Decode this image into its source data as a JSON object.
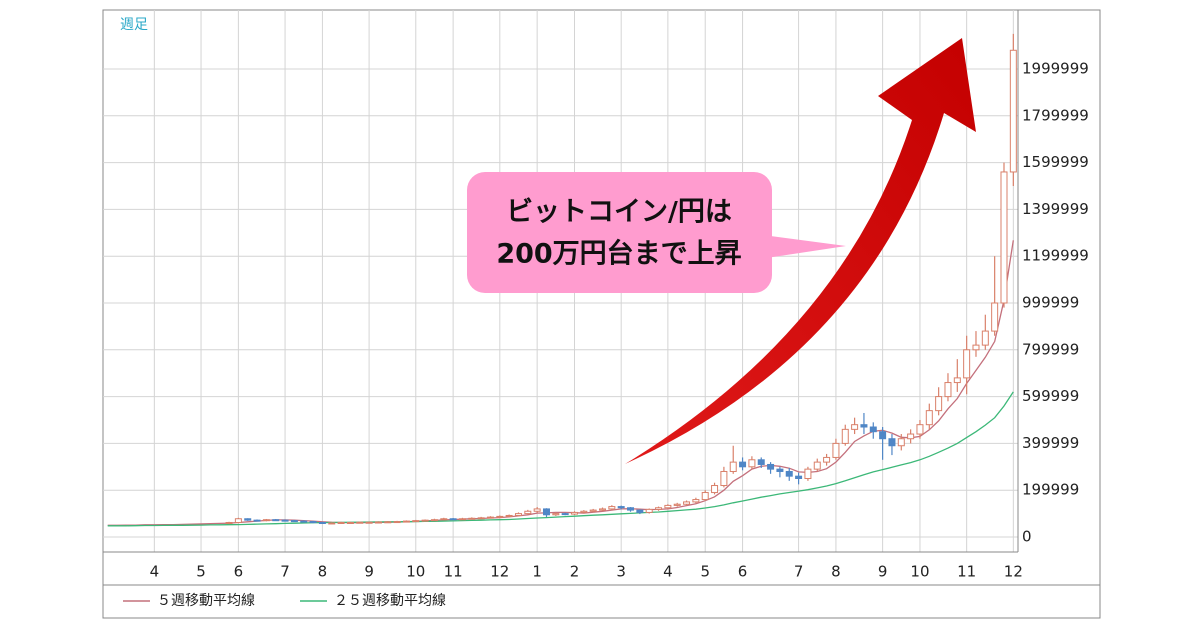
{
  "chart_data": {
    "type": "candlestick",
    "label": "週足",
    "annotation": [
      "ビットコイン/円は",
      "200万円台まで上昇"
    ],
    "categories": [
      null,
      null,
      null,
      null,
      null,
      "4",
      null,
      null,
      null,
      null,
      "5",
      null,
      null,
      null,
      "6",
      null,
      null,
      null,
      null,
      "7",
      null,
      null,
      null,
      "8",
      null,
      null,
      null,
      null,
      "9",
      null,
      null,
      null,
      null,
      "10",
      null,
      null,
      null,
      "11",
      null,
      null,
      null,
      null,
      "12",
      null,
      null,
      null,
      "1",
      null,
      null,
      null,
      "2",
      null,
      null,
      null,
      null,
      "3",
      null,
      null,
      null,
      null,
      "4",
      null,
      null,
      null,
      "5",
      null,
      null,
      null,
      "6",
      null,
      null,
      null,
      null,
      null,
      "7",
      null,
      null,
      null,
      "8",
      null,
      null,
      null,
      null,
      "9",
      null,
      null,
      null,
      "10",
      null,
      null,
      null,
      null,
      "11",
      null,
      null,
      null,
      null,
      "12"
    ],
    "open": [
      null,
      null,
      null,
      null,
      null,
      null,
      null,
      null,
      null,
      null,
      null,
      null,
      null,
      58000,
      62000,
      78000,
      72000,
      70000,
      74000,
      72000,
      70000,
      68000,
      66000,
      62000,
      60000,
      60000,
      62000,
      62000,
      63000,
      63000,
      64000,
      65000,
      66000,
      68000,
      70000,
      72000,
      74000,
      78000,
      76000,
      78000,
      80000,
      82000,
      85000,
      88000,
      92000,
      100000,
      110000,
      120000,
      95000,
      100000,
      98000,
      105000,
      110000,
      115000,
      120000,
      130000,
      125000,
      115000,
      105000,
      118000,
      125000,
      135000,
      140000,
      150000,
      160000,
      190000,
      220000,
      280000,
      320000,
      300000,
      330000,
      310000,
      290000,
      280000,
      260000,
      250000,
      290000,
      320000,
      340000,
      400000,
      460000,
      480000,
      470000,
      450000,
      420000,
      390000,
      420000,
      440000,
      480000,
      540000,
      600000,
      660000,
      680000,
      800000,
      820000,
      880000,
      1000000,
      1560000
    ],
    "high": [
      null,
      null,
      null,
      null,
      null,
      null,
      null,
      null,
      null,
      null,
      null,
      null,
      null,
      65000,
      82000,
      80000,
      75000,
      77000,
      77000,
      75000,
      73000,
      71000,
      69000,
      65000,
      63000,
      65000,
      65000,
      66000,
      66000,
      67000,
      68000,
      69000,
      71000,
      73000,
      75000,
      78000,
      82000,
      81000,
      82000,
      84000,
      86000,
      89000,
      92000,
      96000,
      105000,
      116000,
      128000,
      123000,
      105000,
      104000,
      110000,
      115000,
      120000,
      126000,
      136000,
      134000,
      128000,
      118000,
      122000,
      130000,
      140000,
      146000,
      156000,
      168000,
      200000,
      232000,
      300000,
      390000,
      340000,
      345000,
      340000,
      320000,
      300000,
      295000,
      275000,
      300000,
      335000,
      355000,
      420000,
      480000,
      510000,
      530000,
      490000,
      470000,
      440000,
      440000,
      460000,
      500000,
      570000,
      640000,
      700000,
      760000,
      860000,
      880000,
      950000,
      1200000,
      1600000,
      2150000
    ],
    "low": [
      null,
      null,
      null,
      null,
      null,
      null,
      null,
      null,
      null,
      null,
      null,
      null,
      null,
      55000,
      59000,
      69000,
      67000,
      67000,
      69000,
      67000,
      65000,
      63000,
      59000,
      57000,
      57000,
      58000,
      59000,
      60000,
      60000,
      60000,
      61000,
      62000,
      63000,
      65000,
      67000,
      69000,
      71000,
      73000,
      73000,
      75000,
      77000,
      79000,
      81000,
      84000,
      88000,
      95000,
      104000,
      85000,
      90000,
      93000,
      94000,
      100000,
      105000,
      110000,
      114000,
      118000,
      108000,
      98000,
      100000,
      112000,
      120000,
      130000,
      134000,
      144000,
      155000,
      182000,
      212000,
      270000,
      285000,
      290000,
      295000,
      270000,
      255000,
      240000,
      225000,
      240000,
      280000,
      305000,
      330000,
      390000,
      440000,
      440000,
      420000,
      330000,
      350000,
      370000,
      400000,
      420000,
      460000,
      520000,
      580000,
      620000,
      610000,
      770000,
      800000,
      860000,
      980000,
      1500000
    ],
    "close": [
      null,
      null,
      null,
      null,
      null,
      null,
      null,
      null,
      null,
      null,
      null,
      null,
      null,
      62000,
      78000,
      72000,
      70000,
      74000,
      72000,
      70000,
      68000,
      66000,
      62000,
      60000,
      60000,
      62000,
      62000,
      63000,
      63000,
      64000,
      65000,
      66000,
      68000,
      70000,
      72000,
      74000,
      78000,
      76000,
      78000,
      80000,
      82000,
      85000,
      88000,
      92000,
      100000,
      110000,
      120000,
      95000,
      100000,
      98000,
      105000,
      110000,
      115000,
      120000,
      130000,
      125000,
      115000,
      105000,
      118000,
      125000,
      135000,
      140000,
      150000,
      160000,
      190000,
      220000,
      280000,
      320000,
      300000,
      330000,
      310000,
      290000,
      280000,
      260000,
      250000,
      290000,
      320000,
      340000,
      400000,
      460000,
      480000,
      470000,
      450000,
      420000,
      390000,
      420000,
      440000,
      480000,
      540000,
      600000,
      660000,
      680000,
      800000,
      820000,
      880000,
      1000000,
      1560000,
      2080000
    ],
    "up_color": "#d9806a",
    "down_color": "#4f86c6",
    "series": [
      {
        "name": "５週移動平均線",
        "color": "#c4707c",
        "values": [
          50000,
          50000,
          51000,
          51000,
          52000,
          52000,
          53000,
          53000,
          54000,
          55000,
          56000,
          57000,
          58000,
          59000,
          62000,
          65000,
          68000,
          71000,
          73000,
          73000,
          72000,
          70000,
          68000,
          65000,
          63000,
          62000,
          61000,
          61000,
          62000,
          63000,
          63000,
          64000,
          65000,
          67000,
          69000,
          71000,
          73000,
          75000,
          76000,
          78000,
          79000,
          81000,
          83000,
          86000,
          90000,
          95000,
          102000,
          103000,
          105000,
          105000,
          104000,
          102000,
          106000,
          110000,
          115000,
          120000,
          121000,
          119000,
          117000,
          118000,
          120000,
          126000,
          134000,
          142000,
          155000,
          172000,
          200000,
          238000,
          262000,
          290000,
          302000,
          306000,
          302000,
          294000,
          278000,
          276000,
          280000,
          292000,
          320000,
          362000,
          408000,
          432000,
          452000,
          456000,
          444000,
          426000,
          424000,
          430000,
          458000,
          496000,
          548000,
          592000,
          656000,
          712000,
          768000,
          836000,
          1012000,
          1268000
        ]
      },
      {
        "name": "２５週移動平均線",
        "color": "#3cb878",
        "values": [
          48000,
          48000,
          48000,
          48500,
          49000,
          49000,
          49500,
          50000,
          50000,
          50500,
          51000,
          51500,
          52000,
          52500,
          53000,
          54000,
          55000,
          56000,
          57000,
          58000,
          59000,
          60000,
          61000,
          61500,
          62000,
          62500,
          63000,
          63500,
          64000,
          64500,
          65000,
          65000,
          65500,
          66000,
          66500,
          67000,
          68000,
          69000,
          70000,
          71000,
          72000,
          73000,
          74000,
          75000,
          77000,
          79000,
          81000,
          83000,
          85000,
          87000,
          89000,
          91000,
          93000,
          95000,
          97000,
          99000,
          101000,
          103000,
          105000,
          107000,
          110000,
          113000,
          116000,
          119000,
          124000,
          130000,
          137000,
          146000,
          154000,
          162000,
          170000,
          177000,
          184000,
          190000,
          196000,
          202000,
          210000,
          218000,
          228000,
          240000,
          253000,
          266000,
          278000,
          288000,
          298000,
          308000,
          318000,
          330000,
          345000,
          362000,
          380000,
          400000,
          425000,
          450000,
          478000,
          510000,
          560000,
          620000
        ]
      }
    ],
    "ylim": [
      -64100,
      2252137
    ],
    "yticks": [
      0,
      199999,
      399999,
      599999,
      799999,
      999999,
      1199999,
      1399999,
      1599999,
      1799999,
      1999999
    ],
    "grid": true
  }
}
